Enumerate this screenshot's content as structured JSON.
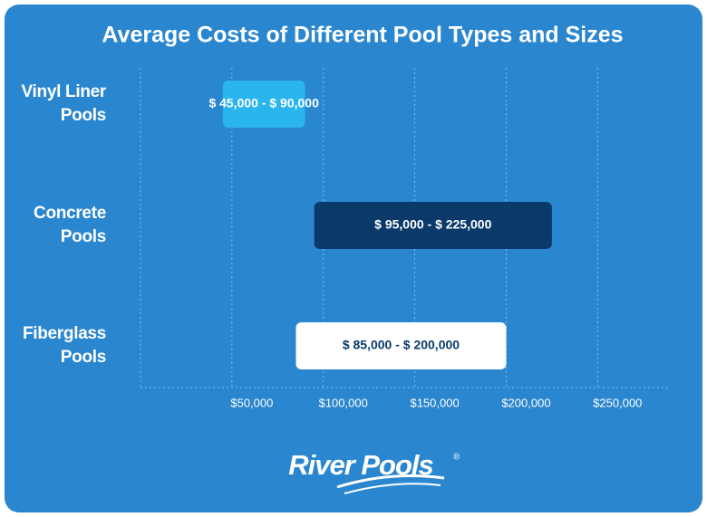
{
  "chart_data": {
    "type": "range_bar",
    "title": "Average Costs of Different Pool Types and Sizes",
    "categories": [
      "Vinyl Liner\nPools",
      "Concrete\nPools",
      "Fiberglass\nPools"
    ],
    "values": [
      [
        45000,
        90000
      ],
      [
        95000,
        225000
      ],
      [
        85000,
        200000
      ]
    ],
    "value_labels": [
      "$ 45,000 - $ 90,000",
      "$ 95,000 - $ 225,000",
      "$ 85,000 - $ 200,000"
    ],
    "colors": [
      "#2bb5ee",
      "#0b3a6a",
      "#ffffff"
    ],
    "label_colors": [
      "#ffffff",
      "#ffffff",
      "#0b3a6a"
    ],
    "xlim": [
      0,
      290000
    ],
    "xticks": [
      {
        "value": 50000,
        "label": "$50,000"
      },
      {
        "value": 100000,
        "label": "$100,000"
      },
      {
        "value": 150000,
        "label": "$150,000"
      },
      {
        "value": 200000,
        "label": "$200,000"
      },
      {
        "value": 250000,
        "label": "$250,000"
      }
    ],
    "grid": true
  },
  "logo": {
    "text": "River Pools",
    "mark": "®"
  }
}
